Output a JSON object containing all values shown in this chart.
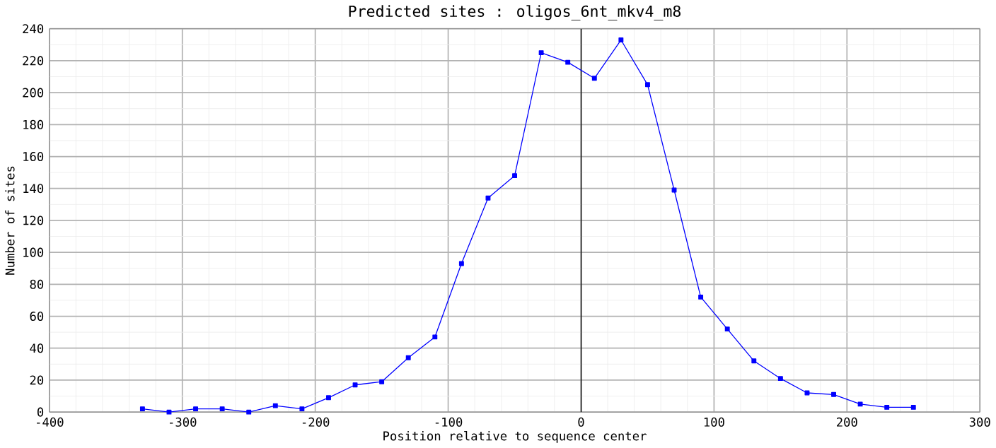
{
  "chart_data": {
    "type": "line",
    "title": "Predicted sites : oligos_6nt_mkv4_m8",
    "xlabel": "Position relative to sequence center",
    "ylabel": "Number of sites",
    "x": [
      -330,
      -310,
      -290,
      -270,
      -250,
      -230,
      -210,
      -190,
      -170,
      -150,
      -130,
      -110,
      -90,
      -70,
      -50,
      -30,
      -10,
      10,
      30,
      50,
      70,
      90,
      110,
      130,
      150,
      170,
      190,
      210,
      230,
      250
    ],
    "series": [
      {
        "color": "#0000ff",
        "values": [
          2,
          0,
          2,
          2,
          0,
          4,
          2,
          9,
          17,
          19,
          34,
          47,
          93,
          134,
          148,
          225,
          219,
          209,
          233,
          205,
          139,
          72,
          52,
          32,
          21,
          12,
          11,
          5,
          3,
          3
        ]
      }
    ],
    "xlim": [
      -400,
      300
    ],
    "ylim": [
      0,
      240
    ],
    "xticks": [
      -400,
      -300,
      -200,
      -100,
      0,
      100,
      200,
      300
    ],
    "yticks": [
      0,
      20,
      40,
      60,
      80,
      100,
      120,
      140,
      160,
      180,
      200,
      220,
      240
    ],
    "ref_lines": [
      {
        "axis": "x",
        "value": 0,
        "color": "#000000"
      }
    ],
    "grid": true,
    "marker": "square",
    "line_style": "solid"
  }
}
